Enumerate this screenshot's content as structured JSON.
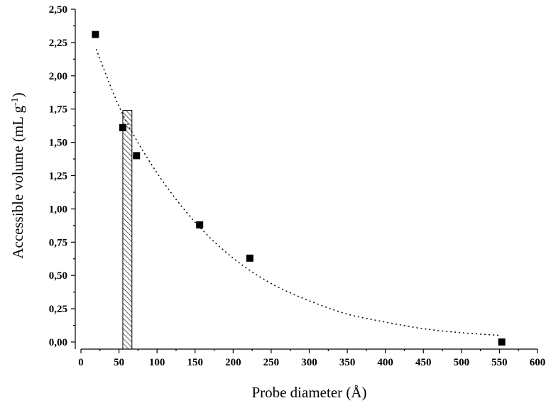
{
  "chart_data": {
    "type": "scatter",
    "xlabel": "Probe diameter (Å)",
    "ylabel": {
      "main": "Accessible volume (mL g",
      "superscript": "-1",
      "close": ")"
    },
    "xlim": [
      0,
      600
    ],
    "ylim": [
      0,
      2.5
    ],
    "x_ticks": [
      0,
      50,
      100,
      150,
      200,
      250,
      300,
      350,
      400,
      450,
      500,
      550,
      600
    ],
    "y_ticks": [
      0.0,
      0.25,
      0.5,
      0.75,
      1.0,
      1.25,
      1.5,
      1.75,
      2.0,
      2.25,
      2.5
    ],
    "x_tick_labels": [
      "0",
      "50",
      "100",
      "150",
      "200",
      "250",
      "300",
      "350",
      "400",
      "450",
      "500",
      "550",
      "600"
    ],
    "y_tick_labels": [
      "0,00",
      "0,25",
      "0,50",
      "0,75",
      "1,00",
      "1,25",
      "1,50",
      "1,75",
      "2,00",
      "2,25",
      "2,50"
    ],
    "series": [
      {
        "marker": "square",
        "color": "#000000",
        "points": [
          {
            "x": 19,
            "y": 2.31
          },
          {
            "x": 55,
            "y": 1.61
          },
          {
            "x": 73,
            "y": 1.4
          },
          {
            "x": 156,
            "y": 0.88
          },
          {
            "x": 222,
            "y": 0.63
          },
          {
            "x": 553,
            "y": 0.0
          }
        ]
      }
    ],
    "fit_curve": {
      "style": "dotted",
      "color": "#000000",
      "points": [
        {
          "x": 20,
          "y": 2.2
        },
        {
          "x": 55,
          "y": 1.71
        },
        {
          "x": 100,
          "y": 1.27
        },
        {
          "x": 150,
          "y": 0.9
        },
        {
          "x": 200,
          "y": 0.63
        },
        {
          "x": 250,
          "y": 0.44
        },
        {
          "x": 300,
          "y": 0.31
        },
        {
          "x": 350,
          "y": 0.21
        },
        {
          "x": 400,
          "y": 0.15
        },
        {
          "x": 450,
          "y": 0.1
        },
        {
          "x": 500,
          "y": 0.07
        },
        {
          "x": 550,
          "y": 0.05
        }
      ]
    },
    "hatched_bar": {
      "x_start": 55,
      "x_end": 67,
      "y": 1.74,
      "pattern": "diagonal-hatch",
      "color": "#000000"
    }
  }
}
